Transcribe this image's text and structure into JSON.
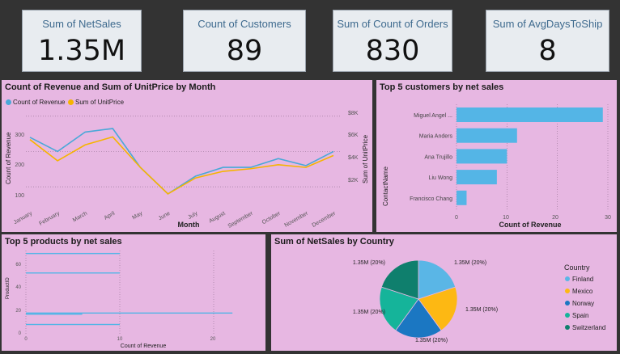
{
  "kpis": [
    {
      "label": "Sum of NetSales",
      "value": "1.35M"
    },
    {
      "label": "Count of Customers",
      "value": "89"
    },
    {
      "label": "Sum of Count of Orders",
      "value": "830"
    },
    {
      "label": "Sum of AvgDaysToShip",
      "value": "8"
    }
  ],
  "line_chart": {
    "title": "Count of Revenue and Sum of UnitPrice by Month",
    "legend": [
      "Count of Revenue",
      "Sum of UnitPrice"
    ],
    "xlabel": "Month",
    "ylabel_left": "Count of Revenue",
    "ylabel_right": "Sum of UnitPrice",
    "left_ticks": [
      "100",
      "200",
      "300"
    ],
    "right_ticks": [
      "$2K",
      "$4K",
      "$6K",
      "$8K"
    ],
    "colors": {
      "revenue": "#4aa8d8",
      "unitprice": "#f6b400"
    }
  },
  "customers_chart": {
    "title": "Top 5 customers by net sales",
    "ylabel": "ContactName",
    "xlabel": "Count of Revenue",
    "ticks": [
      "0",
      "10",
      "20",
      "30"
    ],
    "color": "#54b5e6"
  },
  "products_chart": {
    "title": "Top 5 products by net sales",
    "ylabel": "ProductID",
    "xlabel": "Count of Revenue",
    "yticks": [
      "0",
      "20",
      "40",
      "60"
    ],
    "xticks": [
      "0",
      "10",
      "20"
    ],
    "color": "#54b5e6"
  },
  "pie_chart": {
    "title": "Sum of NetSales by Country",
    "legend_title": "Country"
  },
  "chart_data": [
    {
      "type": "line",
      "title": "Count of Revenue and Sum of UnitPrice by Month",
      "xlabel": "Month",
      "ylabel": "Count of Revenue",
      "categories": [
        "January",
        "February",
        "March",
        "April",
        "May",
        "June",
        "July",
        "August",
        "September",
        "October",
        "November",
        "December"
      ],
      "series": [
        {
          "name": "Count of Revenue",
          "axis": "left",
          "values": [
            240,
            200,
            255,
            265,
            155,
            80,
            130,
            155,
            155,
            180,
            160,
            200
          ]
        },
        {
          "name": "Sum of UnitPrice",
          "axis": "right",
          "values": [
            6500,
            4900,
            6100,
            6700,
            4400,
            2400,
            3600,
            4100,
            4300,
            4600,
            4400,
            5300
          ]
        }
      ],
      "ylim_left": [
        50,
        320
      ],
      "ylim_right": [
        1600,
        8800
      ],
      "legend": "top-left",
      "grid": true
    },
    {
      "type": "bar",
      "orientation": "horizontal",
      "title": "Top 5 customers by net sales",
      "xlabel": "Count of Revenue",
      "ylabel": "ContactName",
      "categories": [
        "Miguel Angel ...",
        "Maria Anders",
        "Ana Trujillo",
        "Liu Wong",
        "Francisco Chang"
      ],
      "values": [
        29,
        12,
        10,
        8,
        2
      ],
      "xlim": [
        0,
        31
      ],
      "grid": true
    },
    {
      "type": "bar",
      "orientation": "horizontal",
      "title": "Top 5 products by net sales",
      "xlabel": "Count of Revenue",
      "ylabel": "ProductID",
      "bars": [
        {
          "y": 68,
          "value": 10
        },
        {
          "y": 51,
          "value": 10
        },
        {
          "y": 16,
          "value": 22
        },
        {
          "y": 15,
          "value": 6
        },
        {
          "y": 6,
          "value": 10
        }
      ],
      "ylim": [
        0,
        72
      ],
      "xlim": [
        0,
        24
      ],
      "grid": true
    },
    {
      "type": "pie",
      "title": "Sum of NetSales by Country",
      "slices": [
        {
          "name": "Finland",
          "value": 20,
          "label": "1.35M (20%)",
          "color": "#5ab6e6"
        },
        {
          "name": "Mexico",
          "value": 20,
          "label": "1.35M (20%)",
          "color": "#fdb813"
        },
        {
          "name": "Norway",
          "value": 20,
          "label": "1.35M (20%)",
          "color": "#1b77c2"
        },
        {
          "name": "Spain",
          "value": 20,
          "label": "1.35M (20%)",
          "color": "#15b49a"
        },
        {
          "name": "Switzerland",
          "value": 20,
          "label": "1.35M (20%)",
          "color": "#0f7f6d"
        }
      ],
      "legend": "right"
    }
  ]
}
